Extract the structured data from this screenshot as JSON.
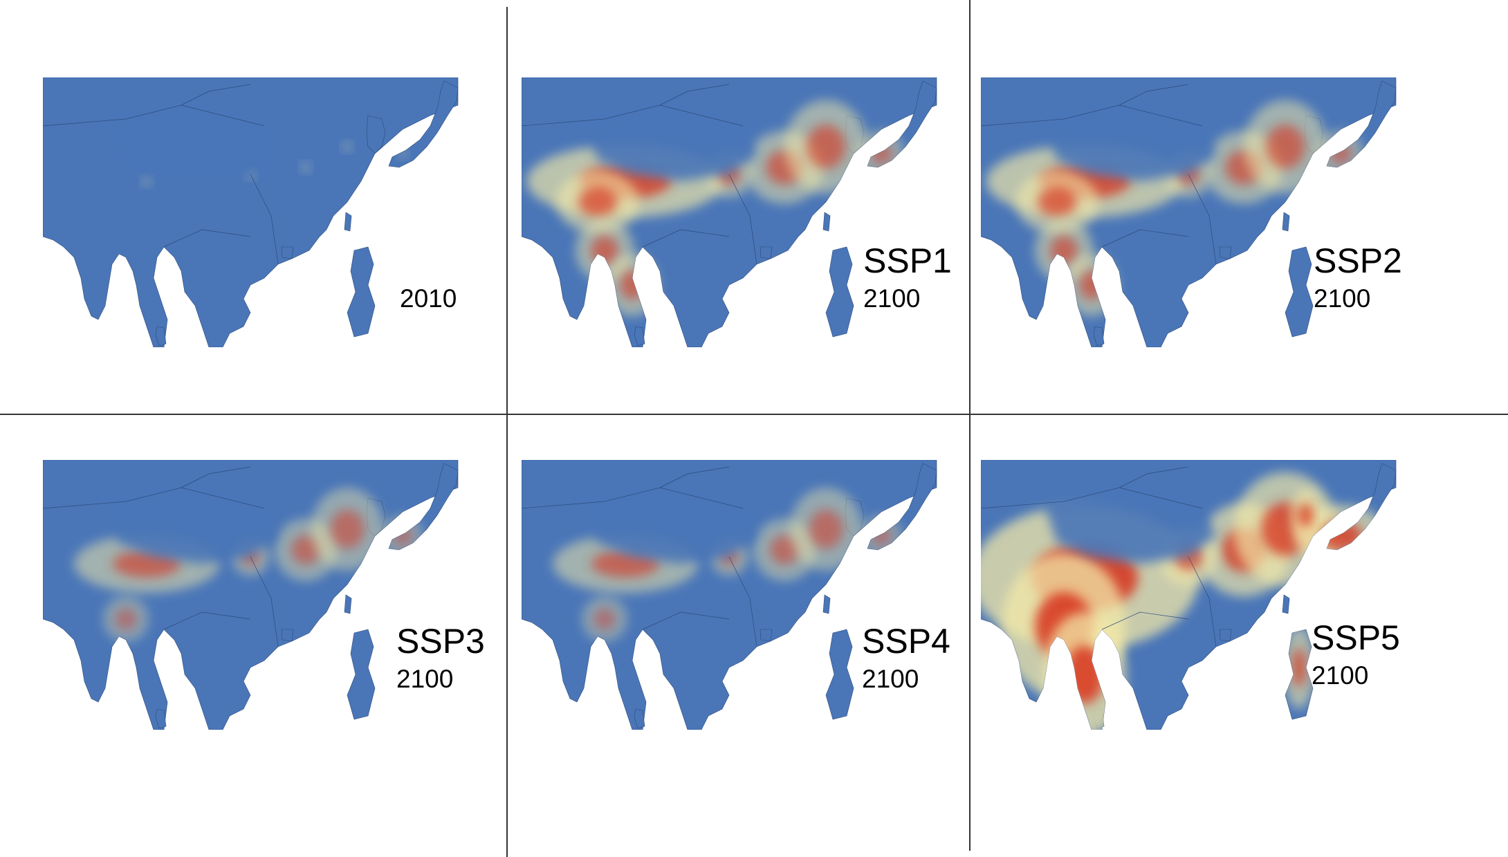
{
  "panels": [
    {
      "scenario": "",
      "year": "2010",
      "intensity": 0
    },
    {
      "scenario": "SSP1",
      "year": "2100",
      "intensity": 2
    },
    {
      "scenario": "SSP2",
      "year": "2100",
      "intensity": 2
    },
    {
      "scenario": "SSP3",
      "year": "2100",
      "intensity": 1
    },
    {
      "scenario": "SSP4",
      "year": "2100",
      "intensity": 1
    },
    {
      "scenario": "SSP5",
      "year": "2100",
      "intensity": 3
    }
  ],
  "colors": {
    "land_low": "#4a76b8",
    "land_mid": "#f2e8a8",
    "land_high": "#d7301f",
    "coast": "#e8d28e",
    "background": "#ffffff"
  }
}
